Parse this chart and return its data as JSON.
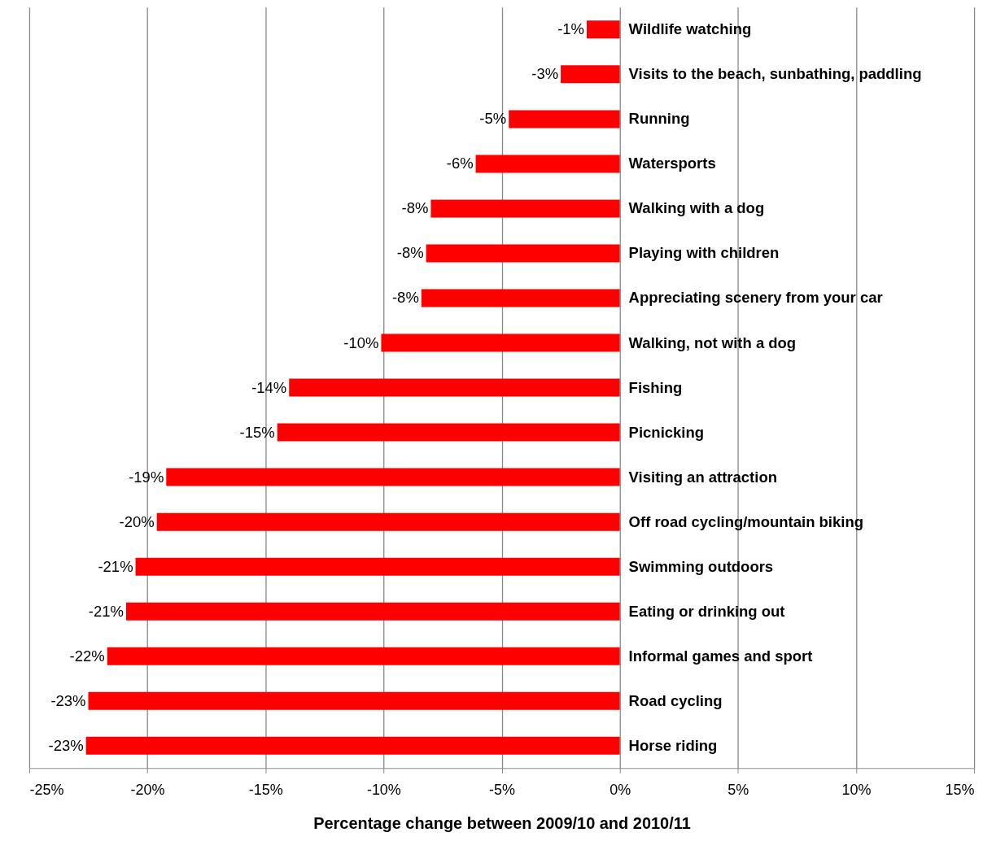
{
  "chart_data": {
    "type": "bar",
    "orientation": "horizontal",
    "categories": [
      "Wildlife watching",
      "Visits to the beach, sunbathing, paddling",
      "Running",
      "Watersports",
      "Walking with a dog",
      "Playing with children",
      "Appreciating scenery from your car",
      "Walking, not with a dog",
      "Fishing",
      "Picnicking",
      "Visiting an attraction",
      "Off road cycling/mountain biking",
      "Swimming outdoors",
      "Eating or drinking out",
      "Informal games and sport",
      "Road cycling",
      "Horse riding"
    ],
    "values": [
      -1.4,
      -2.5,
      -4.7,
      -6.1,
      -8.0,
      -8.2,
      -8.4,
      -10.1,
      -14.0,
      -14.5,
      -19.2,
      -19.6,
      -20.5,
      -20.9,
      -21.7,
      -22.5,
      -22.6
    ],
    "value_labels": [
      "-1%",
      "-3%",
      "-5%",
      "-6%",
      "-8%",
      "-8%",
      "-8%",
      "-10%",
      "-14%",
      "-15%",
      "-19%",
      "-20%",
      "-21%",
      "-21%",
      "-22%",
      "-23%",
      "-23%"
    ],
    "color": "#ff0000",
    "xlabel": "Percentage change between 2009/10 and 2010/11",
    "xlim": [
      -25,
      15
    ],
    "xticks": [
      {
        "value": -25,
        "label": "-25%"
      },
      {
        "value": -20,
        "label": "-20%"
      },
      {
        "value": -15,
        "label": "-15%"
      },
      {
        "value": -10,
        "label": "-10%"
      },
      {
        "value": -5,
        "label": "-5%"
      },
      {
        "value": 0,
        "label": "0%"
      },
      {
        "value": 5,
        "label": "5%"
      },
      {
        "value": 10,
        "label": "10%"
      },
      {
        "value": 15,
        "label": "15%"
      }
    ],
    "grid": "x"
  }
}
